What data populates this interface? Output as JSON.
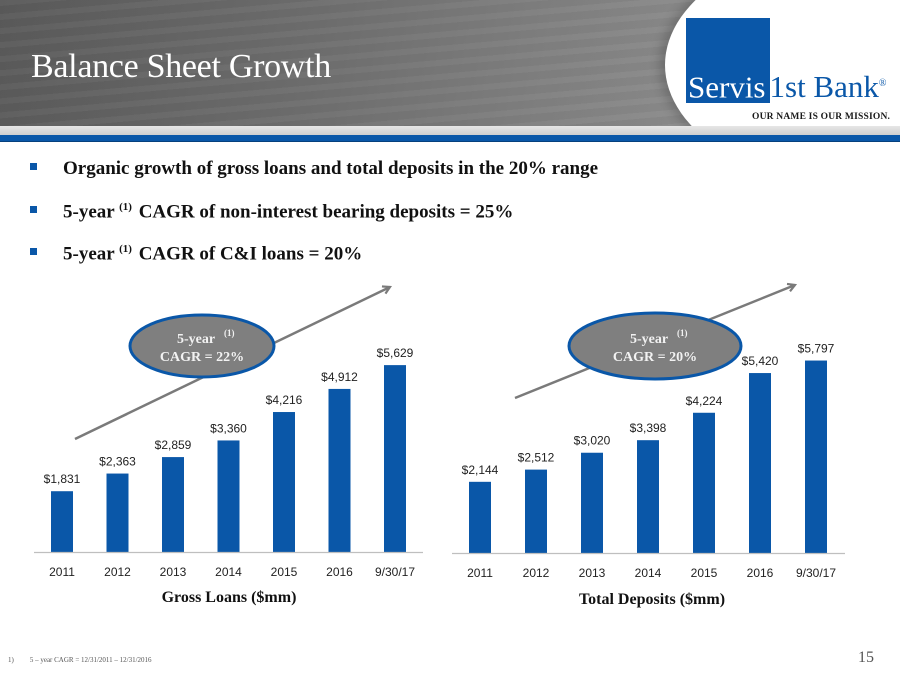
{
  "header": {
    "title": "Balance Sheet Growth",
    "logo": {
      "part1": "Servis",
      "part2": "1st Bank",
      "registered": "®",
      "tagline": "OUR NAME IS OUR MISSION."
    },
    "colors": {
      "brand_blue": "#0a57a8",
      "header_gray": "#6e6e6e"
    }
  },
  "bullets": [
    {
      "pre": "Organic growth of gross loans and total deposits in the 20% range",
      "sup": "",
      "post": ""
    },
    {
      "pre": "5-year ",
      "sup": "(1)",
      "post": " CAGR of non-interest bearing deposits = 25%"
    },
    {
      "pre": "5-year ",
      "sup": "(1)",
      "post": " CAGR of C&I loans = 20%"
    }
  ],
  "chart_data": [
    {
      "type": "bar",
      "title": "Gross Loans ($mm)",
      "categories": [
        "2011",
        "2012",
        "2013",
        "2014",
        "2015",
        "2016",
        "9/30/17"
      ],
      "values": [
        1831,
        2363,
        2859,
        3360,
        4216,
        4912,
        5629
      ],
      "value_labels": [
        "$1,831",
        "$2,363",
        "$2,859",
        "$3,360",
        "$4,216",
        "$4,912",
        "$5,629"
      ],
      "xlabel": "",
      "ylabel": "",
      "ylim": [
        0,
        5800
      ],
      "grid": false,
      "bar_color": "#0a57a8",
      "annotation": {
        "line1": "5-year",
        "sup": "(1)",
        "line2": "CAGR = 22%"
      }
    },
    {
      "type": "bar",
      "title": "Total Deposits ($mm)",
      "categories": [
        "2011",
        "2012",
        "2013",
        "2014",
        "2015",
        "2016",
        "9/30/17"
      ],
      "values": [
        2144,
        2512,
        3020,
        3398,
        4224,
        5420,
        5797
      ],
      "value_labels": [
        "$2,144",
        "$2,512",
        "$3,020",
        "$3,398",
        "$4,224",
        "$5,420",
        "$5,797"
      ],
      "xlabel": "",
      "ylabel": "",
      "ylim": [
        0,
        5800
      ],
      "grid": false,
      "bar_color": "#0a57a8",
      "annotation": {
        "line1": "5-year",
        "sup": "(1)",
        "line2": "CAGR = 20%"
      }
    }
  ],
  "footnote": {
    "num": "1)",
    "text": "5 – year CAGR = 12/31/2011 – 12/31/2016"
  },
  "page_number": "15"
}
